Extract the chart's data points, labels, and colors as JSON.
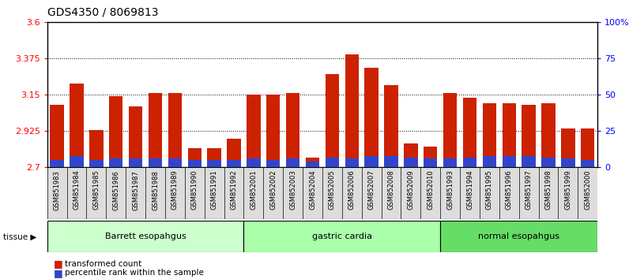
{
  "title": "GDS4350 / 8069813",
  "samples": [
    "GSM851983",
    "GSM851984",
    "GSM851985",
    "GSM851986",
    "GSM851987",
    "GSM851988",
    "GSM851989",
    "GSM851990",
    "GSM851991",
    "GSM851992",
    "GSM852001",
    "GSM852002",
    "GSM852003",
    "GSM852004",
    "GSM852005",
    "GSM852006",
    "GSM852007",
    "GSM852008",
    "GSM852009",
    "GSM852010",
    "GSM851993",
    "GSM851994",
    "GSM851995",
    "GSM851996",
    "GSM851997",
    "GSM851998",
    "GSM851999",
    "GSM852000"
  ],
  "transformed_count": [
    3.09,
    3.22,
    2.93,
    3.14,
    3.08,
    3.16,
    3.16,
    2.82,
    2.82,
    2.88,
    3.15,
    3.15,
    3.16,
    2.76,
    3.28,
    3.4,
    3.32,
    3.21,
    2.85,
    2.83,
    3.16,
    3.13,
    3.1,
    3.1,
    3.09,
    3.1,
    2.94,
    2.94
  ],
  "percentile_rank": [
    5,
    8,
    5,
    6,
    6,
    6,
    6,
    5,
    5,
    5,
    6,
    5,
    6,
    4,
    7,
    6,
    8,
    8,
    7,
    6,
    6,
    7,
    8,
    8,
    8,
    7,
    6,
    5
  ],
  "groups": [
    {
      "label": "Barrett esopahgus",
      "start": 0,
      "end": 10,
      "color": "#ccffcc"
    },
    {
      "label": "gastric cardia",
      "start": 10,
      "end": 20,
      "color": "#aaffaa"
    },
    {
      "label": "normal esopahgus",
      "start": 20,
      "end": 28,
      "color": "#66dd66"
    }
  ],
  "bar_color_red": "#cc2200",
  "bar_color_blue": "#3344cc",
  "y_min": 2.7,
  "y_max": 3.6,
  "y_ticks": [
    2.7,
    2.925,
    3.15,
    3.375,
    3.6
  ],
  "y_tick_labels": [
    "2.7",
    "2.925",
    "3.15",
    "3.375",
    "3.6"
  ],
  "right_y_ticks": [
    0,
    25,
    50,
    75,
    100
  ],
  "right_y_labels": [
    "0",
    "25",
    "50",
    "75",
    "100%"
  ],
  "background_color": "#ffffff",
  "title_fontsize": 10,
  "tick_fontsize": 8,
  "label_fontsize": 7,
  "tissue_label": "tissue ▶",
  "legend_red": "transformed count",
  "legend_blue": "percentile rank within the sample",
  "xtick_bg": "#dddddd"
}
